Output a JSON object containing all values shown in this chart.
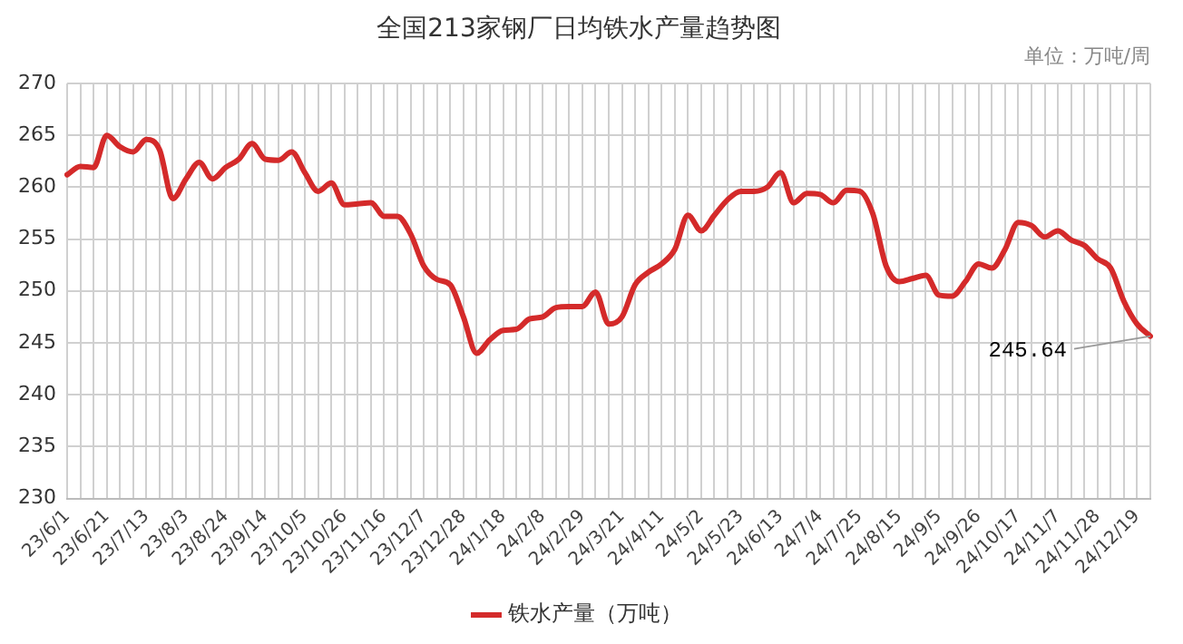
{
  "chart_data": {
    "type": "line",
    "title": "全国213家钢厂日均铁水产量趋势图",
    "subtitle": "单位：万吨/周",
    "categories": [
      "23/6/1",
      null,
      null,
      "23/6/21",
      null,
      null,
      "23/7/13",
      null,
      null,
      "23/8/3",
      null,
      null,
      "23/8/24",
      null,
      null,
      "23/9/14",
      null,
      null,
      "23/10/5",
      null,
      null,
      "23/10/26",
      null,
      null,
      "23/11/16",
      null,
      null,
      "23/12/7",
      null,
      null,
      "23/12/28",
      null,
      null,
      "24/1/18",
      null,
      null,
      "24/2/8",
      null,
      null,
      "24/2/29",
      null,
      null,
      "24/3/21",
      null,
      null,
      "24/4/11",
      null,
      null,
      "24/5/2",
      null,
      null,
      "24/5/23",
      null,
      null,
      "24/6/13",
      null,
      null,
      "24/7/4",
      null,
      null,
      "24/7/25",
      null,
      null,
      "24/8/15",
      null,
      null,
      "24/9/5",
      null,
      null,
      "24/9/26",
      null,
      null,
      "24/10/17",
      null,
      null,
      "24/11/7",
      null,
      null,
      "24/11/28",
      null,
      null,
      "24/12/19",
      null
    ],
    "series": [
      {
        "name": "铁水产量（万吨）",
        "color": "#d42a2a",
        "values": [
          261.2,
          262.0,
          261.9,
          265.0,
          263.9,
          263.4,
          264.6,
          263.6,
          258.9,
          260.8,
          262.4,
          260.8,
          261.9,
          262.7,
          264.2,
          262.7,
          262.6,
          263.4,
          261.4,
          259.6,
          260.4,
          258.3,
          258.4,
          258.5,
          257.2,
          257.2,
          255.5,
          252.4,
          251.1,
          250.6,
          247.5,
          244.0,
          245.3,
          246.2,
          246.3,
          247.3,
          247.5,
          248.4,
          248.5,
          248.5,
          249.9,
          246.8,
          247.5,
          250.6,
          251.8,
          252.6,
          254.0,
          257.3,
          255.8,
          257.3,
          258.8,
          259.6,
          259.6,
          260.0,
          261.4,
          258.5,
          259.4,
          259.3,
          258.5,
          259.7,
          259.6,
          257.4,
          252.4,
          250.9,
          251.2,
          251.5,
          249.6,
          249.5,
          250.9,
          252.6,
          252.2,
          254.0,
          256.6,
          256.3,
          255.2,
          255.8,
          254.9,
          254.4,
          253.1,
          252.2,
          249.0,
          246.8,
          245.64
        ]
      }
    ],
    "value_labels": [
      null,
      null,
      null,
      null,
      null,
      null,
      null,
      null,
      null,
      null,
      null,
      null,
      null,
      null,
      null,
      null,
      null,
      null,
      null,
      null,
      null,
      null,
      null,
      null,
      null,
      null,
      null,
      null,
      null,
      null,
      null,
      null,
      null,
      null,
      null,
      null,
      null,
      null,
      null,
      null,
      null,
      null,
      null,
      null,
      null,
      null,
      null,
      null,
      null,
      null,
      null,
      null,
      null,
      null,
      null,
      null,
      null,
      null,
      null,
      null,
      null,
      null,
      null,
      null,
      null,
      null,
      null,
      null,
      null,
      null,
      null,
      null,
      null,
      null,
      null,
      null,
      null,
      null,
      null,
      null,
      null,
      null,
      "245.64"
    ],
    "ylim": [
      230,
      270
    ],
    "yticks": [
      230,
      235,
      240,
      245,
      250,
      255,
      260,
      265,
      270
    ],
    "grid": true,
    "legend": "bottom",
    "marker": "none",
    "line_style": "solid"
  }
}
